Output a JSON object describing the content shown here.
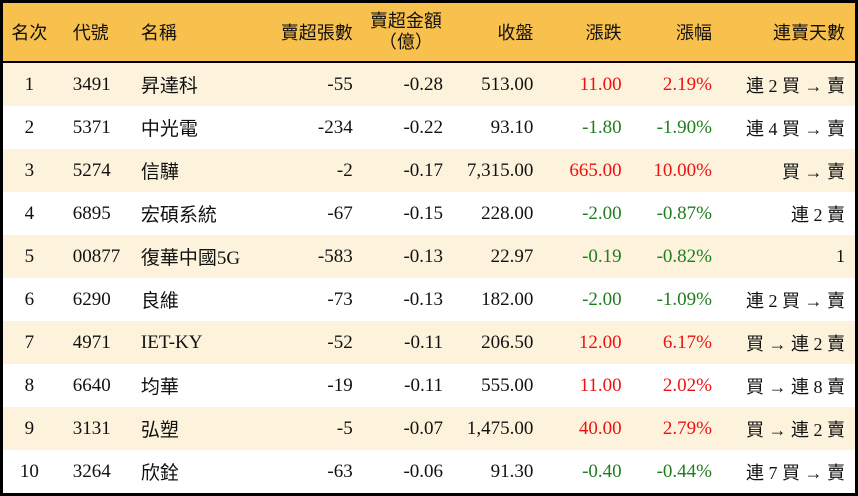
{
  "chart_data": {
    "type": "table",
    "columns": [
      {
        "key": "rank",
        "label": "名次"
      },
      {
        "key": "code",
        "label": "代號"
      },
      {
        "key": "name",
        "label": "名稱"
      },
      {
        "key": "sell_volume",
        "label": "賣超張數"
      },
      {
        "key": "sell_amount",
        "label": "賣超金額",
        "label2": "（億）"
      },
      {
        "key": "close",
        "label": "收盤"
      },
      {
        "key": "change",
        "label": "漲跌"
      },
      {
        "key": "change_pct",
        "label": "漲幅"
      },
      {
        "key": "streak",
        "label": "連賣天數"
      }
    ],
    "rows": [
      {
        "rank": "1",
        "code": "3491",
        "name": "昇達科",
        "sell_volume": "-55",
        "sell_amount": "-0.28",
        "close": "513.00",
        "change": "11.00",
        "change_pct": "2.19%",
        "trend": "up",
        "streak": "連 2 買 → 賣"
      },
      {
        "rank": "2",
        "code": "5371",
        "name": "中光電",
        "sell_volume": "-234",
        "sell_amount": "-0.22",
        "close": "93.10",
        "change": "-1.80",
        "change_pct": "-1.90%",
        "trend": "down",
        "streak": "連 4 買 → 賣"
      },
      {
        "rank": "3",
        "code": "5274",
        "name": "信驊",
        "sell_volume": "-2",
        "sell_amount": "-0.17",
        "close": "7,315.00",
        "change": "665.00",
        "change_pct": "10.00%",
        "trend": "up",
        "streak": "買 → 賣"
      },
      {
        "rank": "4",
        "code": "6895",
        "name": "宏碩系統",
        "sell_volume": "-67",
        "sell_amount": "-0.15",
        "close": "228.00",
        "change": "-2.00",
        "change_pct": "-0.87%",
        "trend": "down",
        "streak": "連 2 賣"
      },
      {
        "rank": "5",
        "code": "00877",
        "name": "復華中國5G",
        "sell_volume": "-583",
        "sell_amount": "-0.13",
        "close": "22.97",
        "change": "-0.19",
        "change_pct": "-0.82%",
        "trend": "down",
        "streak": "1"
      },
      {
        "rank": "6",
        "code": "6290",
        "name": "良維",
        "sell_volume": "-73",
        "sell_amount": "-0.13",
        "close": "182.00",
        "change": "-2.00",
        "change_pct": "-1.09%",
        "trend": "down",
        "streak": "連 2 買 → 賣"
      },
      {
        "rank": "7",
        "code": "4971",
        "name": "IET-KY",
        "sell_volume": "-52",
        "sell_amount": "-0.11",
        "close": "206.50",
        "change": "12.00",
        "change_pct": "6.17%",
        "trend": "up",
        "streak": "買 → 連 2 賣"
      },
      {
        "rank": "8",
        "code": "6640",
        "name": "均華",
        "sell_volume": "-19",
        "sell_amount": "-0.11",
        "close": "555.00",
        "change": "11.00",
        "change_pct": "2.02%",
        "trend": "up",
        "streak": "買 → 連 8 賣"
      },
      {
        "rank": "9",
        "code": "3131",
        "name": "弘塑",
        "sell_volume": "-5",
        "sell_amount": "-0.07",
        "close": "1,475.00",
        "change": "40.00",
        "change_pct": "2.79%",
        "trend": "up",
        "streak": "買 → 連 2 賣"
      },
      {
        "rank": "10",
        "code": "3264",
        "name": "欣銓",
        "sell_volume": "-63",
        "sell_amount": "-0.06",
        "close": "91.30",
        "change": "-0.40",
        "change_pct": "-0.44%",
        "trend": "down",
        "streak": "連 7 買 → 賣"
      }
    ]
  },
  "colors": {
    "header_bg": "#f8c04d",
    "row_alt_bg": "#fdf3dc",
    "row_bg": "#ffffff",
    "up_red": "#ee1111",
    "down_green": "#1e7e1e",
    "border": "#000000"
  }
}
